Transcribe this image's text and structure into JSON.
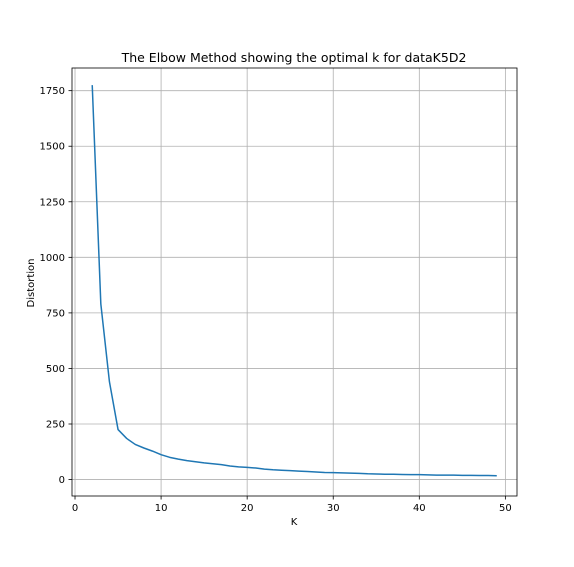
{
  "chart_data": {
    "type": "line",
    "title": "The Elbow Method showing the optimal k for dataK5D2",
    "xlabel": "K",
    "ylabel": "Distortion",
    "xlim": [
      -0.35,
      51.35
    ],
    "ylim": [
      -74,
      1852
    ],
    "xticks": [
      0,
      10,
      20,
      30,
      40,
      50
    ],
    "yticks": [
      0,
      250,
      500,
      750,
      1000,
      1250,
      1500,
      1750
    ],
    "grid": true,
    "series": [
      {
        "color": "#1f77b4",
        "x": [
          2,
          3,
          4,
          5,
          6,
          7,
          8,
          9,
          10,
          11,
          12,
          13,
          14,
          15,
          16,
          17,
          18,
          19,
          20,
          21,
          22,
          23,
          24,
          25,
          26,
          27,
          28,
          29,
          30,
          31,
          32,
          33,
          34,
          35,
          36,
          37,
          38,
          39,
          40,
          41,
          42,
          43,
          44,
          45,
          46,
          47,
          48,
          49
        ],
        "y": [
          1775,
          790,
          440,
          225,
          185,
          158,
          142,
          128,
          112,
          100,
          92,
          85,
          80,
          75,
          71,
          67,
          61,
          57,
          55,
          52,
          47,
          44,
          42,
          40,
          38,
          36,
          34,
          32,
          31,
          30,
          29,
          28,
          26,
          25,
          24,
          24,
          23,
          22,
          22,
          21,
          20,
          20,
          20,
          19,
          19,
          18,
          18,
          17
        ]
      }
    ]
  }
}
